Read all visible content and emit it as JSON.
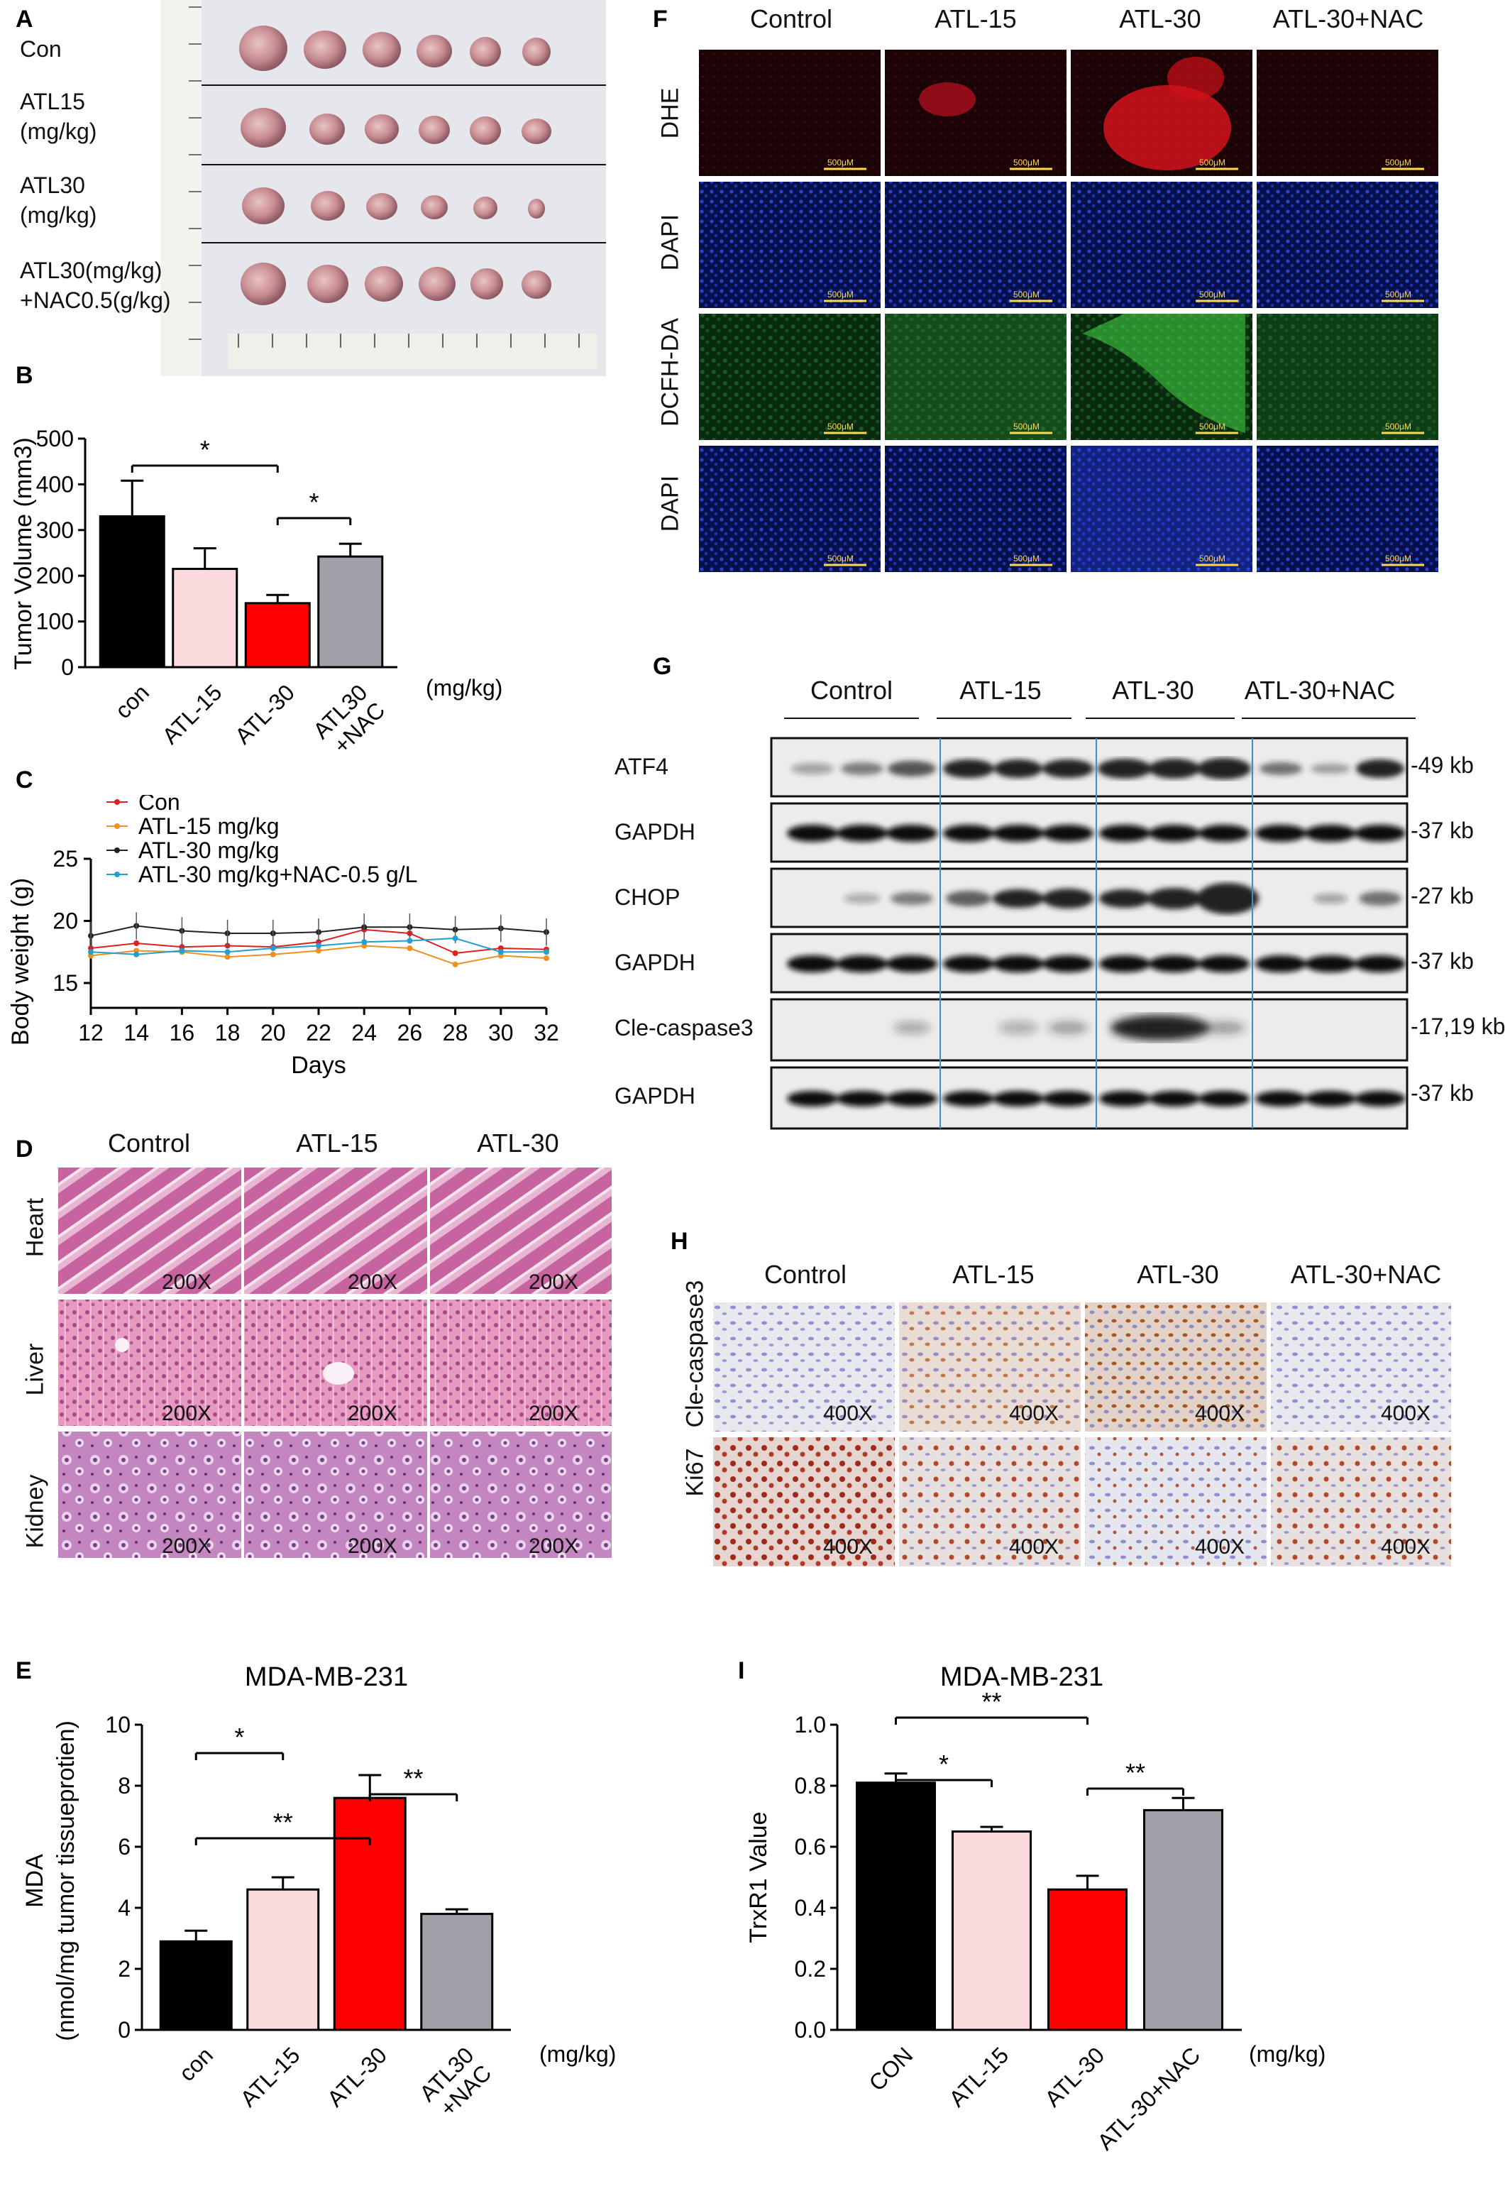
{
  "panel_letters": {
    "A": "A",
    "B": "B",
    "C": "C",
    "D": "D",
    "E": "E",
    "F": "F",
    "G": "G",
    "H": "H",
    "I": "I"
  },
  "panelA": {
    "rows": [
      {
        "line1": "Con",
        "line2": ""
      },
      {
        "line1": "ATL15",
        "line2": "(mg/kg)"
      },
      {
        "line1": "ATL30",
        "line2": "(mg/kg)"
      },
      {
        "line1": "ATL30(mg/kg)",
        "line2": "+NAC0.5(g/kg)"
      }
    ]
  },
  "panelB": {
    "chart_data": {
      "type": "bar",
      "categories": [
        "con",
        "ATL-15",
        "ATL-30",
        "ATL30\n+NAC"
      ],
      "values": [
        330,
        215,
        140,
        242
      ],
      "errors": [
        78,
        45,
        18,
        28
      ],
      "colors": [
        "#000000",
        "#fadadd",
        "#ff0000",
        "#a0a0a8"
      ],
      "ylabel": "Tumor Volume (mm3)",
      "unit": "(mg/kg)",
      "ylim": [
        0,
        500
      ],
      "yticks": [
        0,
        100,
        200,
        300,
        400,
        500
      ],
      "significance": [
        {
          "from": 0,
          "to": 2,
          "label": "*"
        },
        {
          "from": 2,
          "to": 3,
          "label": "*"
        }
      ]
    }
  },
  "panelC": {
    "chart_data": {
      "type": "line",
      "x": [
        12,
        14,
        16,
        18,
        20,
        22,
        24,
        26,
        28,
        30,
        32
      ],
      "xlabel": "Days",
      "ylabel": "Body weight (g)",
      "ylim": [
        13,
        25
      ],
      "yticks": [
        15,
        20,
        25
      ],
      "series": [
        {
          "name": "Con",
          "color": "#e02020",
          "values": [
            17.8,
            18.2,
            17.9,
            18.0,
            17.9,
            18.3,
            19.3,
            19.0,
            17.4,
            17.8,
            17.7
          ]
        },
        {
          "name": "ATL-15 mg/kg",
          "color": "#f09020",
          "values": [
            17.2,
            17.6,
            17.5,
            17.1,
            17.3,
            17.6,
            18.0,
            17.8,
            16.5,
            17.2,
            17.0
          ]
        },
        {
          "name": "ATL-30 mg/kg",
          "color": "#222222",
          "values": [
            18.8,
            19.6,
            19.2,
            19.0,
            19.0,
            19.1,
            19.5,
            19.5,
            19.3,
            19.4,
            19.1
          ]
        },
        {
          "name": "ATL-30 mg/kg+NAC-0.5 g/L",
          "color": "#20a0d0",
          "values": [
            17.5,
            17.3,
            17.6,
            17.5,
            17.8,
            18.0,
            18.3,
            18.4,
            18.6,
            17.5,
            17.5
          ]
        }
      ]
    }
  },
  "panelD": {
    "columns": [
      "Control",
      "ATL-15",
      "ATL-30"
    ],
    "rows": [
      "Heart",
      "Liver",
      "Kidney"
    ],
    "magnification": "200X"
  },
  "panelE": {
    "chart_data": {
      "type": "bar",
      "title": "MDA-MB-231",
      "categories": [
        "con",
        "ATL-15",
        "ATL-30",
        "ATL30\n+NAC"
      ],
      "values": [
        2.9,
        4.6,
        7.6,
        3.8
      ],
      "errors": [
        0.35,
        0.4,
        0.75,
        0.15
      ],
      "colors": [
        "#000000",
        "#fadadd",
        "#ff0000",
        "#a0a0a8"
      ],
      "ylabel_line1": "MDA",
      "ylabel_line2": "(nmol/mg tumor tissueprotien)",
      "unit": "(mg/kg)",
      "ylim": [
        0,
        10
      ],
      "yticks": [
        0,
        2,
        4,
        6,
        8,
        10
      ],
      "significance": [
        {
          "from": 0,
          "to": 1,
          "label": "*"
        },
        {
          "from": 0,
          "to": 2,
          "label": "**"
        },
        {
          "from": 2,
          "to": 3,
          "label": "**"
        }
      ]
    }
  },
  "panelF": {
    "columns": [
      "Control",
      "ATL-15",
      "ATL-30",
      "ATL-30+NAC"
    ],
    "rows": [
      "DHE",
      "DAPI",
      "DCFH-DA",
      "DAPI"
    ],
    "scalebar": "500μM"
  },
  "panelG": {
    "groups": [
      "Control",
      "ATL-15",
      "ATL-30",
      "ATL-30+NAC"
    ],
    "rows": [
      {
        "label": "ATF4",
        "kd": "-49 kb"
      },
      {
        "label": "GAPDH",
        "kd": "-37 kb"
      },
      {
        "label": "CHOP",
        "kd": "-27 kb"
      },
      {
        "label": "GAPDH",
        "kd": "-37 kb"
      },
      {
        "label": "Cle-caspase3",
        "kd": "-17,19 kb"
      },
      {
        "label": "GAPDH",
        "kd": "-37 kb"
      }
    ]
  },
  "panelH": {
    "columns": [
      "Control",
      "ATL-15",
      "ATL-30",
      "ATL-30+NAC"
    ],
    "rows": [
      "Cle-caspase3",
      "Ki67"
    ],
    "magnification": "400X"
  },
  "panelI": {
    "chart_data": {
      "type": "bar",
      "title": "MDA-MB-231",
      "categories": [
        "CON",
        "ATL-15",
        "ATL-30",
        "ATL-30+NAC"
      ],
      "values": [
        0.81,
        0.65,
        0.46,
        0.72
      ],
      "errors": [
        0.03,
        0.015,
        0.045,
        0.04
      ],
      "colors": [
        "#000000",
        "#fadadd",
        "#ff0000",
        "#a0a0a8"
      ],
      "ylabel": "TrxR1 Value",
      "unit": "(mg/kg)",
      "ylim": [
        0,
        1.0
      ],
      "yticks": [
        "0.0",
        "0.2",
        "0.4",
        "0.6",
        "0.8",
        "1.0"
      ],
      "significance": [
        {
          "from": 0,
          "to": 1,
          "label": "*"
        },
        {
          "from": 0,
          "to": 2,
          "label": "**"
        },
        {
          "from": 2,
          "to": 3,
          "label": "**"
        }
      ]
    }
  }
}
